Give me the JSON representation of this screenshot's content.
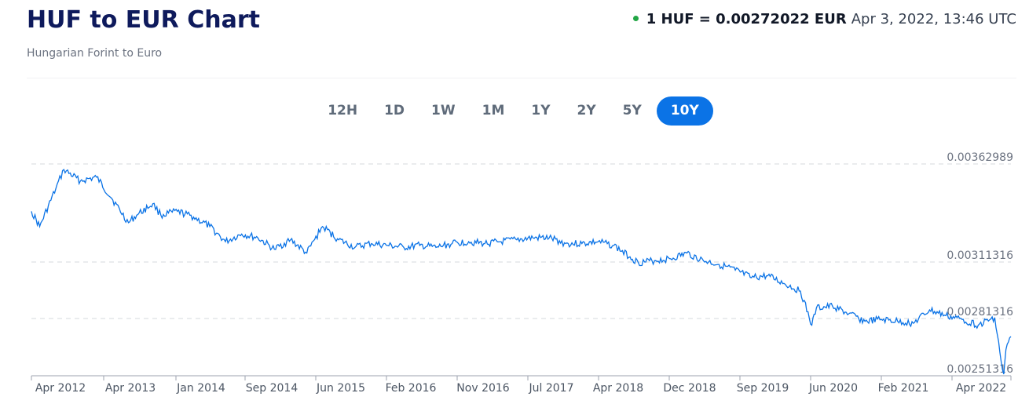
{
  "header": {
    "title": "HUF to EUR Chart",
    "subtitle": "Hungarian Forint to Euro",
    "rate": "1 HUF = 0.00272022 EUR",
    "timestamp": "Apr 3, 2022, 13:46 UTC",
    "status_color": "#22a645"
  },
  "ranges": {
    "items": [
      "12H",
      "1D",
      "1W",
      "1M",
      "1Y",
      "2Y",
      "5Y",
      "10Y"
    ],
    "active": "10Y"
  },
  "chart_data": {
    "type": "line",
    "line_color": "#0b73e6",
    "x_ticks": [
      "Apr 2012",
      "Apr 2013",
      "Jan 2014",
      "Sep 2014",
      "Jun 2015",
      "Feb 2016",
      "Nov 2016",
      "Jul 2017",
      "Apr 2018",
      "Dec 2018",
      "Sep 2019",
      "Jun 2020",
      "Feb 2021",
      "Apr 2022"
    ],
    "y_ticks": [
      "0.00362989",
      "0.00311316",
      "0.00281316",
      "0.00251316"
    ],
    "series": [
      {
        "x": [
          "2012-03-01",
          "2012-04-01",
          "2012-06-01",
          "2012-07-01",
          "2012-09-01",
          "2012-11-01",
          "2013-01-01",
          "2013-03-01",
          "2013-04-01",
          "2013-06-01",
          "2013-07-01",
          "2013-09-01",
          "2013-11-01",
          "2014-01-01",
          "2014-03-01",
          "2014-05-01",
          "2014-07-01",
          "2014-09-01",
          "2014-11-01",
          "2015-01-01",
          "2015-03-01",
          "2015-05-01",
          "2015-07-01",
          "2015-09-01",
          "2015-11-01",
          "2016-01-01",
          "2016-03-01",
          "2016-05-01",
          "2016-07-01",
          "2016-09-01",
          "2016-11-01",
          "2017-01-01",
          "2017-03-01",
          "2017-05-01",
          "2017-07-01",
          "2017-09-01",
          "2017-11-01",
          "2018-01-01",
          "2018-03-01",
          "2018-05-01",
          "2018-06-01",
          "2018-08-01",
          "2018-10-01",
          "2018-12-01",
          "2019-02-01",
          "2019-04-01",
          "2019-06-01",
          "2019-08-01",
          "2019-10-01",
          "2019-12-01",
          "2020-02-01",
          "2020-03-15",
          "2020-04-01",
          "2020-06-01",
          "2020-08-01",
          "2020-10-01",
          "2020-12-01",
          "2021-02-01",
          "2021-04-01",
          "2021-06-01",
          "2021-08-01",
          "2021-10-01",
          "2021-12-01",
          "2022-02-01",
          "2022-03-07",
          "2022-03-15",
          "2022-04-03"
        ],
        "y": [
          0.00338,
          0.0033,
          0.0035,
          0.0036,
          0.00354,
          0.00356,
          0.00344,
          0.00332,
          0.00336,
          0.00342,
          0.00336,
          0.00338,
          0.00335,
          0.0033,
          0.00322,
          0.00326,
          0.00324,
          0.00318,
          0.00323,
          0.00316,
          0.0033,
          0.00323,
          0.00319,
          0.00321,
          0.0032,
          0.00319,
          0.0032,
          0.00319,
          0.00321,
          0.00322,
          0.00321,
          0.00322,
          0.00323,
          0.00324,
          0.00324,
          0.00321,
          0.00321,
          0.00322,
          0.0032,
          0.00314,
          0.00311,
          0.00312,
          0.00313,
          0.00316,
          0.00312,
          0.0031,
          0.00307,
          0.00303,
          0.00304,
          0.003,
          0.00296,
          0.00278,
          0.00287,
          0.00288,
          0.00284,
          0.0028,
          0.00281,
          0.0028,
          0.00279,
          0.00286,
          0.00283,
          0.00281,
          0.00278,
          0.00282,
          0.0025,
          0.00265,
          0.00272
        ]
      }
    ]
  }
}
